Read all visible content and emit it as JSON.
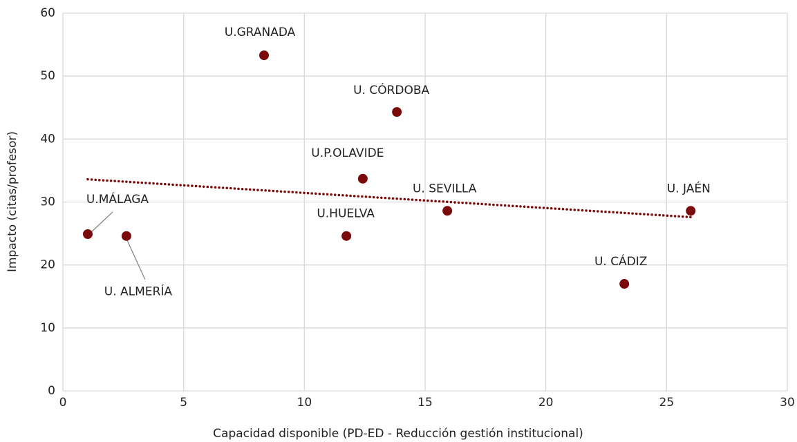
{
  "chart_data": {
    "type": "scatter",
    "xlabel": "Capacidad disponible (PD-ED - Reducción gestión institucional)",
    "ylabel": "Impacto (citas/profesor)",
    "labels": [
      "U.GRANADA",
      "U. CÓRDOBA",
      "U.P.OLAVIDE",
      "U. SEVILLA",
      "U. JAÉN",
      "U.MÁLAGA",
      "U. ALMERÍA",
      "U.HUELVA",
      "U. CÁDIZ"
    ],
    "x": [
      8.33,
      13.83,
      12.42,
      15.92,
      26.0,
      1.03,
      2.63,
      11.74,
      23.25
    ],
    "y": [
      53.3,
      44.3,
      33.7,
      28.6,
      28.6,
      24.9,
      24.6,
      24.6,
      17.0
    ],
    "color": "#7b0a0a",
    "trendline": {
      "x": [
        1.03,
        26.0
      ],
      "y": [
        33.6,
        27.6
      ]
    },
    "xlim": [
      0,
      30
    ],
    "xticks": [
      0,
      5,
      10,
      15,
      20,
      25,
      30
    ],
    "ylim": [
      0,
      60
    ],
    "yticks": [
      0,
      10,
      20,
      30,
      40,
      50,
      60
    ],
    "grid": true
  }
}
